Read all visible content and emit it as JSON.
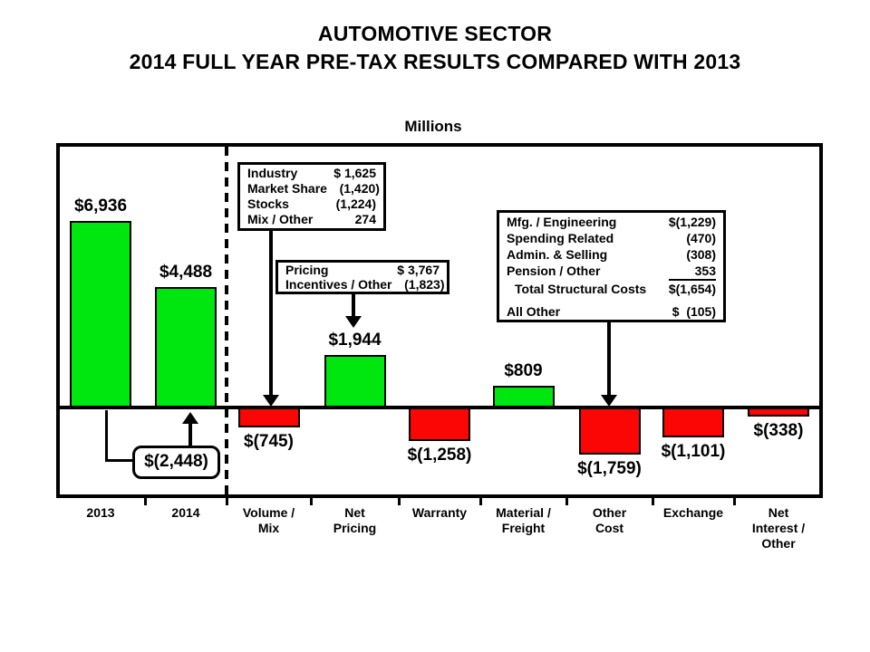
{
  "title": {
    "line1": "AUTOMOTIVE SECTOR",
    "line2": "2014 FULL YEAR PRE-TAX RESULTS COMPARED WITH 2013"
  },
  "axis_title": "Millions",
  "colors": {
    "positive_bar": "#00e60f",
    "negative_bar": "#fb0505",
    "ink": "#000000",
    "background": "#ffffff"
  },
  "chart_data": {
    "type": "bar",
    "subtype": "waterfall",
    "title": "Automotive Sector 2014 full year pre-tax results compared with 2013",
    "ylabel": "Millions",
    "unit": "USD millions",
    "baseline": 0,
    "grid": false,
    "legend": "none",
    "categories": [
      "2013",
      "2014",
      "Volume /\nMix",
      "Net\nPricing",
      "Warranty",
      "Material /\nFreight",
      "Other\nCost",
      "Exchange",
      "Net\nInterest /\nOther"
    ],
    "values": [
      6936,
      4488,
      -745,
      1944,
      -1258,
      809,
      -1759,
      -1101,
      -338
    ],
    "value_labels": [
      "$6,936",
      "$4,488",
      "$(745)",
      "$1,944",
      "$(1,258)",
      "$809",
      "$(1,759)",
      "$(1,101)",
      "$(338)"
    ],
    "total_change": {
      "label": "$(2,448)",
      "value": -2448,
      "from": "2013",
      "to": "2014"
    }
  },
  "callouts": [
    {
      "name": "volume-mix-detail",
      "points_to": "Volume / Mix",
      "rows": [
        {
          "label": "Industry",
          "value": "$ 1,625"
        },
        {
          "label": "Market Share",
          "value": "(1,420)"
        },
        {
          "label": "Stocks",
          "value": "(1,224)"
        },
        {
          "label": "Mix / Other",
          "value": "274"
        }
      ]
    },
    {
      "name": "net-pricing-detail",
      "points_to": "Net Pricing",
      "rows": [
        {
          "label": "Pricing",
          "value": "$ 3,767"
        },
        {
          "label": "Incentives / Other",
          "value": "(1,823)"
        }
      ]
    },
    {
      "name": "other-cost-detail",
      "points_to": "Other Cost",
      "rows": [
        {
          "label": "Mfg. / Engineering",
          "value": "$(1,229)"
        },
        {
          "label": "Spending Related",
          "value": "(470)"
        },
        {
          "label": "Admin. & Selling",
          "value": "(308)"
        },
        {
          "label": "Pension / Other",
          "value": "353",
          "underline": true
        },
        {
          "label": "Total Structural Costs",
          "value": "$(1,654)",
          "indent": true
        },
        {
          "label": "All Other",
          "value": "$  (105)",
          "gap": true
        }
      ]
    }
  ]
}
